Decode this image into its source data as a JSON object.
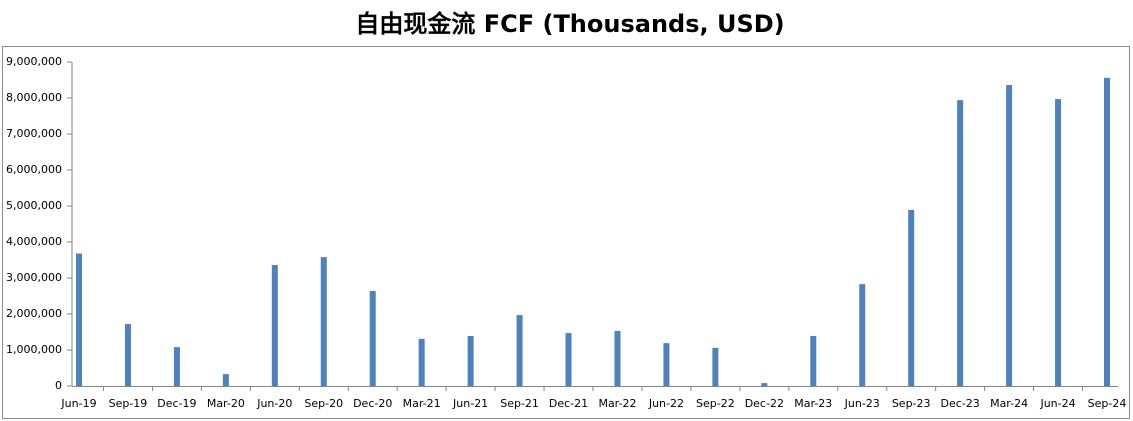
{
  "chart_data": {
    "type": "bar",
    "title": "自由现金流 FCF (Thousands, USD)",
    "categories": [
      "Jun-19",
      "Sep-19",
      "Dec-19",
      "Mar-20",
      "Jun-20",
      "Sep-20",
      "Dec-20",
      "Mar-21",
      "Jun-21",
      "Sep-21",
      "Dec-21",
      "Mar-22",
      "Jun-22",
      "Sep-22",
      "Dec-22",
      "Mar-23",
      "Jun-23",
      "Sep-23",
      "Dec-23",
      "Mar-24",
      "Jun-24",
      "Sep-24"
    ],
    "values": [
      3680000,
      1720000,
      1080000,
      330000,
      3360000,
      3580000,
      2640000,
      1310000,
      1390000,
      1970000,
      1470000,
      1530000,
      1190000,
      1060000,
      80000,
      1390000,
      2830000,
      4890000,
      7940000,
      8360000,
      7970000,
      8560000
    ],
    "color": "#4f81bd",
    "ylim": [
      0,
      9000000
    ],
    "yticks": [
      {
        "value": 0,
        "label": "0"
      },
      {
        "value": 1000000,
        "label": "1,000,000"
      },
      {
        "value": 2000000,
        "label": "2,000,000"
      },
      {
        "value": 3000000,
        "label": "3,000,000"
      },
      {
        "value": 4000000,
        "label": "4,000,000"
      },
      {
        "value": 5000000,
        "label": "5,000,000"
      },
      {
        "value": 6000000,
        "label": "6,000,000"
      },
      {
        "value": 7000000,
        "label": "7,000,000"
      },
      {
        "value": 8000000,
        "label": "8,000,000"
      },
      {
        "value": 9000000,
        "label": "9,000,000"
      }
    ],
    "grid": false
  }
}
